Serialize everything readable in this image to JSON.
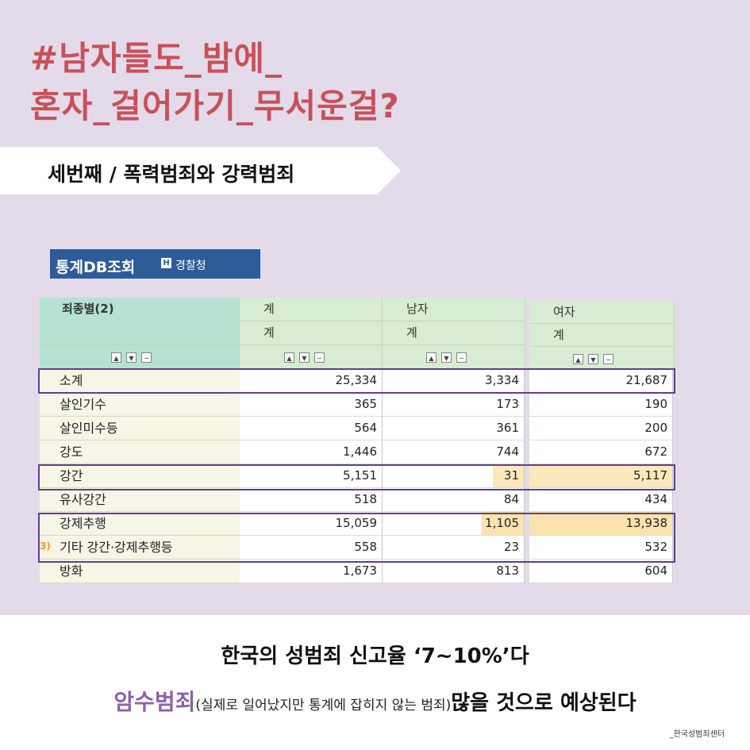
{
  "header": {
    "line1": "#남자들도_밤에_",
    "line2": "혼자_걸어가기_무서운걸?"
  },
  "banner": {
    "text": "세번째 / 폭력범죄와 강력범죄"
  },
  "db": {
    "title": "통계DB조회",
    "badge": "H",
    "agency": "경찰청"
  },
  "table": {
    "row_header": "죄종별(2)",
    "columns": [
      {
        "top": "계",
        "sub": "계"
      },
      {
        "top": "남자",
        "sub": "계"
      },
      {
        "top": "여자",
        "sub": "계"
      }
    ],
    "rows": [
      {
        "label": "소계",
        "v1": "25,334",
        "v2": "3,334",
        "v3": "21,687"
      },
      {
        "label": "살인기수",
        "v1": "365",
        "v2": "173",
        "v3": "190"
      },
      {
        "label": "살인미수등",
        "v1": "564",
        "v2": "361",
        "v3": "200"
      },
      {
        "label": "강도",
        "v1": "1,446",
        "v2": "744",
        "v3": "672"
      },
      {
        "label": "강간",
        "v1": "5,151",
        "v2": "31",
        "v3": "5,117"
      },
      {
        "label": "유사강간",
        "v1": "518",
        "v2": "84",
        "v3": "434"
      },
      {
        "label": "강제추행",
        "v1": "15,059",
        "v2": "1,105",
        "v3": "13,938"
      },
      {
        "label": "기타 강간·강제추행등",
        "v1": "558",
        "v2": "23",
        "v3": "532"
      },
      {
        "label": "방화",
        "v1": "1,673",
        "v2": "813",
        "v3": "604"
      }
    ],
    "note": "3)",
    "highlight_color": "#fbe9bd",
    "box_color": "#5e3f8f"
  },
  "footer": {
    "line1": "한국의 성범죄 신고율 ‘7~10%’다",
    "hidden_crime": "암수범죄",
    "paren": "(실제로 일어났지만 통계에 잡히지 않는 범죄)",
    "tail": "많을 것으로 예상된다",
    "credit": "_한국성범죄센터"
  },
  "colors": {
    "background": "#e3dbe9",
    "headline": "#c95058",
    "accent": "#8a63a8",
    "db_header": "#2e5b9a"
  }
}
